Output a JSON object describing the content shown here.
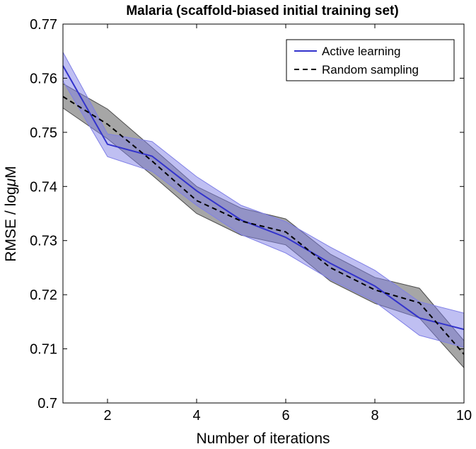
{
  "chart_data": {
    "type": "line",
    "title": "Malaria (scaffold-biased initial training set)",
    "xlabel": "Number of iterations",
    "ylabel_prefix": "RMSE / log",
    "ylabel_mu": "μ",
    "ylabel_suffix": "M",
    "xlim": [
      1,
      10
    ],
    "ylim": [
      0.7,
      0.77
    ],
    "xticks": [
      2,
      4,
      6,
      8,
      10
    ],
    "yticks": [
      0.7,
      0.71,
      0.72,
      0.73,
      0.74,
      0.75,
      0.76,
      0.77
    ],
    "ytick_labels": [
      "0.7",
      "0.71",
      "0.72",
      "0.73",
      "0.74",
      "0.75",
      "0.76",
      "0.77"
    ],
    "legend_position": "top-right",
    "x": [
      1,
      2,
      3,
      4,
      5,
      6,
      7,
      8,
      9,
      10
    ],
    "series": [
      {
        "name": "Active learning",
        "style": "solid",
        "color": "#3333cc",
        "band_color": "#7f7fe6",
        "values": [
          0.7623,
          0.7478,
          0.7456,
          0.7392,
          0.7338,
          0.7306,
          0.7258,
          0.7216,
          0.7157,
          0.7136
        ],
        "upper": [
          0.7648,
          0.7497,
          0.7483,
          0.7418,
          0.7365,
          0.7335,
          0.7288,
          0.7245,
          0.7187,
          0.7166
        ],
        "lower": [
          0.7595,
          0.7455,
          0.7428,
          0.7365,
          0.7311,
          0.7277,
          0.7228,
          0.7187,
          0.7125,
          0.7103
        ]
      },
      {
        "name": "Random sampling",
        "style": "dashed",
        "color": "#000000",
        "band_color": "#4d4d4d",
        "values": [
          0.7566,
          0.7515,
          0.7447,
          0.7374,
          0.7336,
          0.7316,
          0.725,
          0.7209,
          0.7185,
          0.709
        ],
        "upper": [
          0.759,
          0.7543,
          0.7472,
          0.74,
          0.736,
          0.734,
          0.7275,
          0.7232,
          0.7212,
          0.7115
        ],
        "lower": [
          0.7545,
          0.7488,
          0.7421,
          0.735,
          0.731,
          0.7292,
          0.7225,
          0.7184,
          0.7157,
          0.7065
        ]
      }
    ]
  }
}
